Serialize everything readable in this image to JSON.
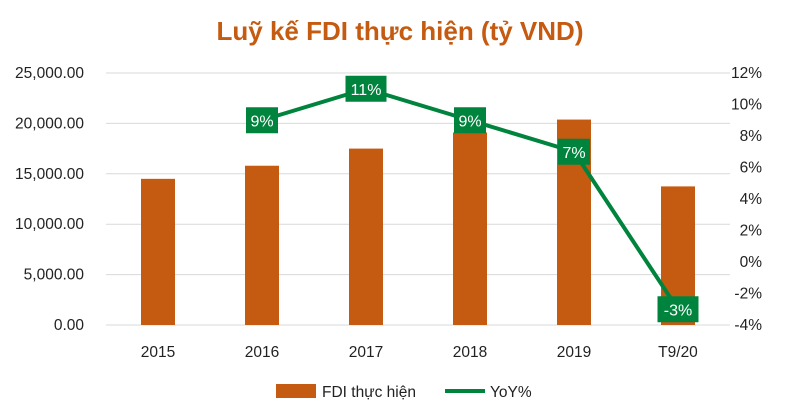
{
  "chart_data": {
    "type": "bar",
    "title": "Luỹ kế FDI thực hiện (tỷ VND)",
    "categories": [
      "2015",
      "2016",
      "2017",
      "2018",
      "2019",
      "T9/20"
    ],
    "series": [
      {
        "name": "FDI thực hiện",
        "type": "bar",
        "axis": "left",
        "values": [
          14500,
          15800,
          17500,
          19100,
          20380,
          13750
        ]
      },
      {
        "name": "YoY%",
        "type": "line",
        "axis": "right",
        "values": [
          null,
          9,
          11,
          9,
          7,
          -3
        ],
        "labels": [
          "",
          "9%",
          "11%",
          "9%",
          "7%",
          "-3%"
        ]
      }
    ],
    "left_axis": {
      "min": 0,
      "max": 25000,
      "ticks": [
        "0.00",
        "5,000.00",
        "10,000.00",
        "15,000.00",
        "20,000.00",
        "25,000.00"
      ]
    },
    "right_axis": {
      "min": -4,
      "max": 12,
      "ticks": [
        "-4%",
        "-2%",
        "0%",
        "2%",
        "4%",
        "6%",
        "8%",
        "10%",
        "12%"
      ]
    },
    "legend_position": "bottom",
    "grid": true
  },
  "colors": {
    "bar": "#C55A11",
    "line": "#00843D",
    "title": "#C55A11",
    "grid": "#D9D9D9"
  }
}
